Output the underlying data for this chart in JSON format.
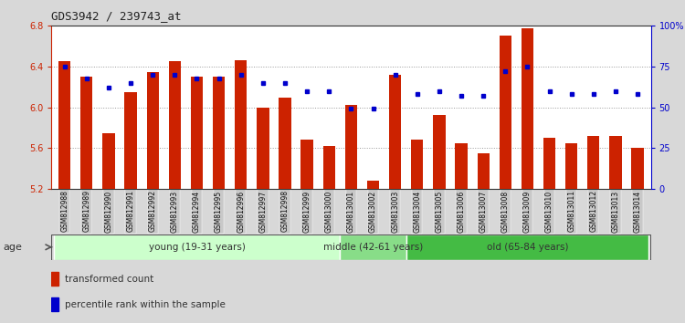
{
  "title": "GDS3942 / 239743_at",
  "samples": [
    "GSM812988",
    "GSM812989",
    "GSM812990",
    "GSM812991",
    "GSM812992",
    "GSM812993",
    "GSM812994",
    "GSM812995",
    "GSM812996",
    "GSM812997",
    "GSM812998",
    "GSM812999",
    "GSM813000",
    "GSM813001",
    "GSM813002",
    "GSM813003",
    "GSM813004",
    "GSM813005",
    "GSM813006",
    "GSM813007",
    "GSM813008",
    "GSM813009",
    "GSM813010",
    "GSM813011",
    "GSM813012",
    "GSM813013",
    "GSM813014"
  ],
  "bar_values": [
    6.45,
    6.3,
    5.75,
    6.15,
    6.35,
    6.45,
    6.3,
    6.3,
    6.46,
    6.0,
    6.1,
    5.68,
    5.62,
    6.02,
    5.28,
    6.32,
    5.68,
    5.93,
    5.65,
    5.55,
    6.7,
    6.78,
    5.7,
    5.65,
    5.72,
    5.72,
    5.6
  ],
  "dot_values": [
    75,
    68,
    62,
    65,
    70,
    70,
    68,
    68,
    70,
    65,
    65,
    60,
    60,
    49,
    49,
    70,
    58,
    60,
    57,
    57,
    72,
    75,
    60,
    58,
    58,
    60,
    58
  ],
  "ylim_left": [
    5.2,
    6.8
  ],
  "ylim_right": [
    0,
    100
  ],
  "yticks_left": [
    5.2,
    5.6,
    6.0,
    6.4,
    6.8
  ],
  "yticks_right": [
    0,
    25,
    50,
    75,
    100
  ],
  "ytick_right_labels": [
    "0",
    "25",
    "50",
    "75",
    "100%"
  ],
  "bar_color": "#cc2200",
  "dot_color": "#0000cc",
  "bar_bottom": 5.2,
  "groups": [
    {
      "label": "young (19-31 years)",
      "start": 0,
      "end": 13,
      "color": "#ccffcc"
    },
    {
      "label": "middle (42-61 years)",
      "start": 13,
      "end": 16,
      "color": "#88dd88"
    },
    {
      "label": "old (65-84 years)",
      "start": 16,
      "end": 27,
      "color": "#44bb44"
    }
  ],
  "bg_color": "#d8d8d8",
  "plot_bg_color": "#ffffff",
  "xtick_bg_color": "#c8c8c8",
  "grid_color": "#999999",
  "title_fontsize": 9,
  "tick_fontsize": 7,
  "bar_width": 0.55
}
